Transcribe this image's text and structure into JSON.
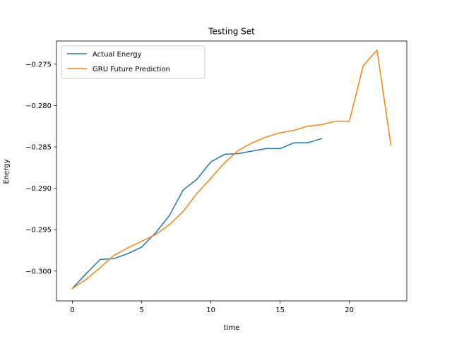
{
  "chart_data": {
    "type": "line",
    "title": "Testing Set",
    "xlabel": "time",
    "ylabel": "Energy",
    "xlim": [
      -1.15,
      24.15
    ],
    "ylim": [
      -0.3036,
      -0.2722
    ],
    "xticks": [
      0,
      5,
      10,
      15,
      20
    ],
    "yticks": [
      -0.3,
      -0.295,
      -0.29,
      -0.285,
      -0.28,
      -0.275
    ],
    "ytick_labels": [
      "−0.300",
      "−0.295",
      "−0.290",
      "−0.285",
      "−0.280",
      "−0.275"
    ],
    "grid": false,
    "legend": "top-left",
    "series": [
      {
        "name": "Actual Energy",
        "color": "#1f77b4",
        "x": [
          0,
          1,
          2,
          3,
          4,
          5,
          6,
          7,
          8,
          9,
          10,
          11,
          12,
          13,
          14,
          15,
          16,
          17,
          18
        ],
        "y": [
          -0.3021,
          -0.3003,
          -0.2986,
          -0.2985,
          -0.2979,
          -0.2971,
          -0.2954,
          -0.2933,
          -0.2902,
          -0.2889,
          -0.2868,
          -0.2859,
          -0.2858,
          -0.2855,
          -0.2852,
          -0.2852,
          -0.2845,
          -0.2845,
          -0.284
        ]
      },
      {
        "name": "GRU Future Prediction",
        "color": "#ff7f0e",
        "x": [
          0,
          1,
          2,
          3,
          4,
          5,
          6,
          7,
          8,
          9,
          10,
          11,
          12,
          13,
          14,
          15,
          16,
          17,
          18,
          19,
          20,
          21,
          22,
          23
        ],
        "y": [
          -0.3021,
          -0.301,
          -0.2996,
          -0.2981,
          -0.2972,
          -0.2964,
          -0.2956,
          -0.2944,
          -0.2928,
          -0.2906,
          -0.2888,
          -0.2869,
          -0.2854,
          -0.2845,
          -0.2838,
          -0.2833,
          -0.283,
          -0.2825,
          -0.2823,
          -0.2819,
          -0.2819,
          -0.2752,
          -0.2733,
          -0.2848
        ]
      }
    ]
  }
}
